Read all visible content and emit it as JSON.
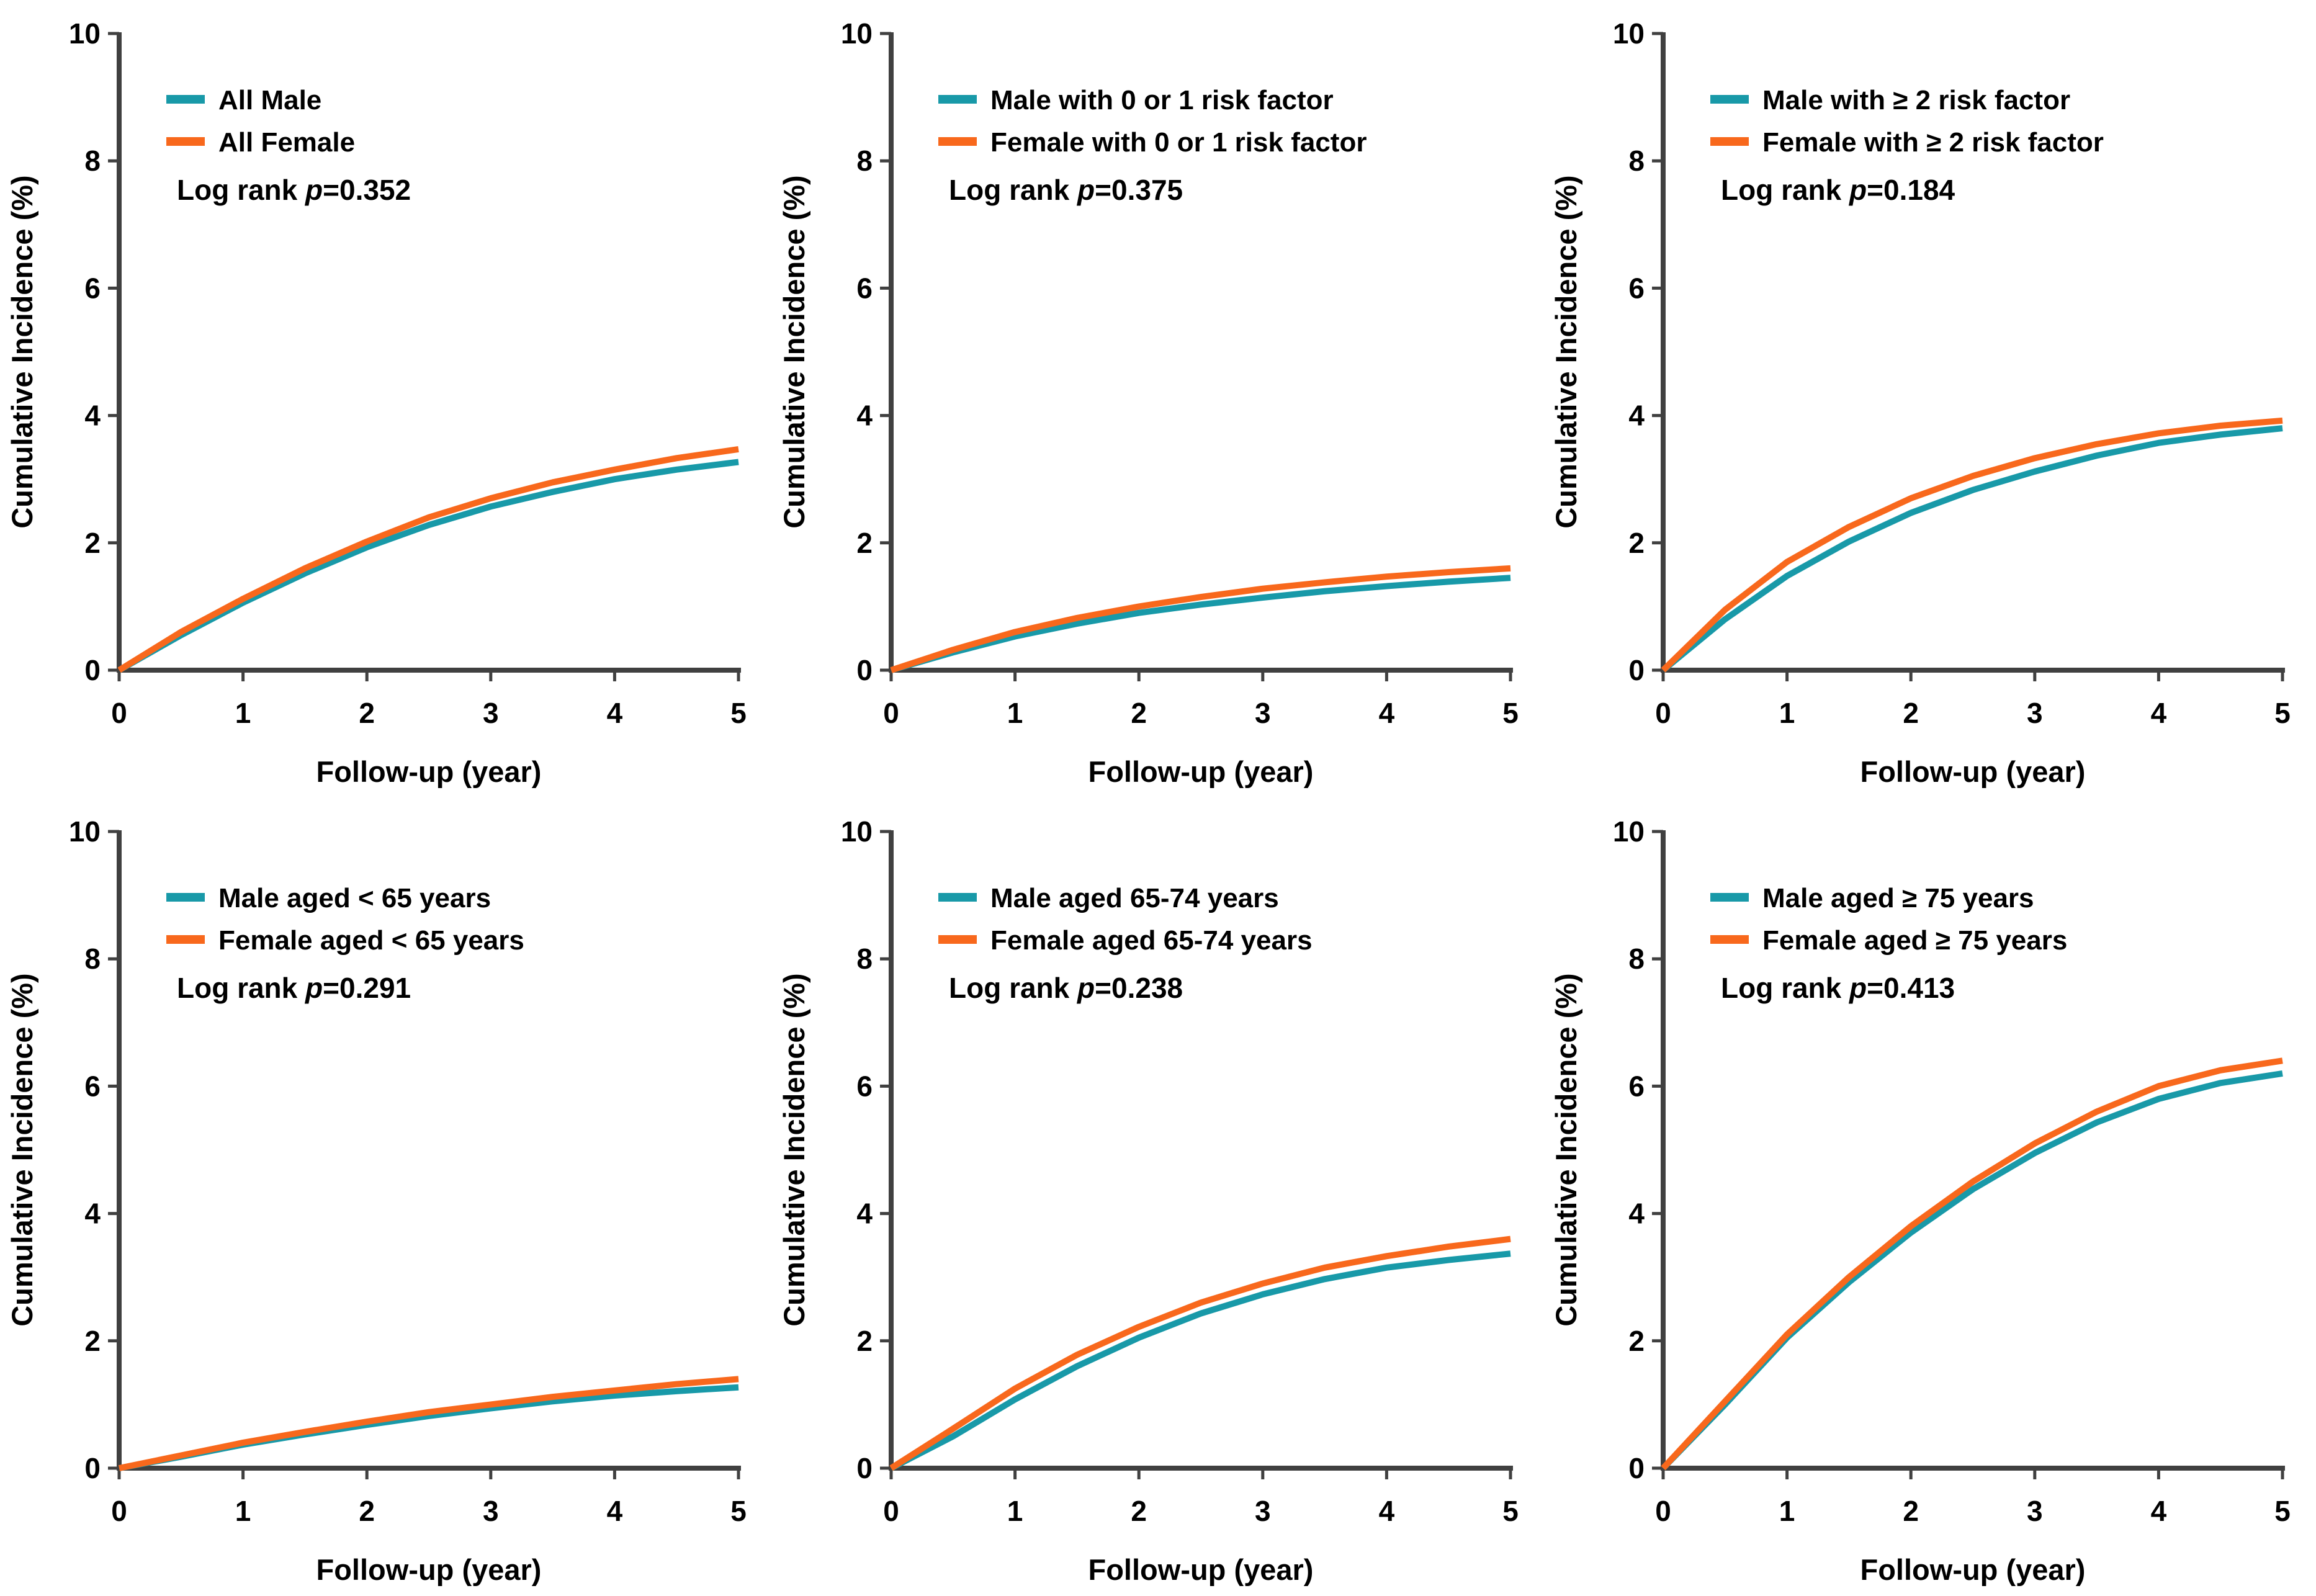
{
  "figure": {
    "background": "#ffffff",
    "rows": 2,
    "cols": 3
  },
  "colors": {
    "male": "#1899A8",
    "female": "#F8681C",
    "axis": "#404040",
    "text": "#000000"
  },
  "chart_data": [
    {
      "panel_id": "top-left",
      "type": "line",
      "xlabel": "Follow-up (year)",
      "ylabel": "Cumulative Incidence (%)",
      "xlim": [
        0,
        5
      ],
      "ylim": [
        0,
        10
      ],
      "xticks": [
        "0",
        "1",
        "2",
        "3",
        "4",
        "5"
      ],
      "yticks": [
        "0",
        "2",
        "4",
        "6",
        "8",
        "10"
      ],
      "grid": false,
      "legend_position": "upper-left",
      "log_rank": {
        "prefix": "Log rank ",
        "p_symbol": "p",
        "value": "=0.352"
      },
      "x": [
        0,
        0.5,
        1,
        1.5,
        2,
        2.5,
        3,
        3.5,
        4,
        4.5,
        5
      ],
      "series": [
        {
          "name": "All Male",
          "color_key": "male",
          "values": [
            0,
            0.55,
            1.06,
            1.52,
            1.93,
            2.28,
            2.57,
            2.8,
            3.0,
            3.15,
            3.27
          ]
        },
        {
          "name": "All Female",
          "color_key": "female",
          "values": [
            0,
            0.6,
            1.12,
            1.6,
            2.02,
            2.4,
            2.7,
            2.95,
            3.15,
            3.33,
            3.47
          ]
        }
      ]
    },
    {
      "panel_id": "top-middle",
      "type": "line",
      "xlabel": "Follow-up (year)",
      "ylabel": "Cumulative Incidence (%)",
      "xlim": [
        0,
        5
      ],
      "ylim": [
        0,
        10
      ],
      "xticks": [
        "0",
        "1",
        "2",
        "3",
        "4",
        "5"
      ],
      "yticks": [
        "0",
        "2",
        "4",
        "6",
        "8",
        "10"
      ],
      "grid": false,
      "legend_position": "upper-left",
      "log_rank": {
        "prefix": "Log rank ",
        "p_symbol": "p",
        "value": "=0.375"
      },
      "x": [
        0,
        0.5,
        1,
        1.5,
        2,
        2.5,
        3,
        3.5,
        4,
        4.5,
        5
      ],
      "series": [
        {
          "name": "Male with 0 or 1 risk factor",
          "color_key": "male",
          "values": [
            0,
            0.28,
            0.53,
            0.73,
            0.9,
            1.03,
            1.14,
            1.24,
            1.32,
            1.39,
            1.45
          ]
        },
        {
          "name": "Female with 0 or 1 risk factor",
          "color_key": "female",
          "values": [
            0,
            0.32,
            0.6,
            0.82,
            1.0,
            1.15,
            1.28,
            1.38,
            1.47,
            1.54,
            1.6
          ]
        }
      ]
    },
    {
      "panel_id": "top-right",
      "type": "line",
      "xlabel": "Follow-up (year)",
      "ylabel": "Cumulative Incidence (%)",
      "xlim": [
        0,
        5
      ],
      "ylim": [
        0,
        10
      ],
      "xticks": [
        "0",
        "1",
        "2",
        "3",
        "4",
        "5"
      ],
      "yticks": [
        "0",
        "2",
        "4",
        "6",
        "8",
        "10"
      ],
      "grid": false,
      "legend_position": "upper-left",
      "log_rank": {
        "prefix": "Log rank ",
        "p_symbol": "p",
        "value": "=0.184"
      },
      "x": [
        0,
        0.5,
        1,
        1.5,
        2,
        2.5,
        3,
        3.5,
        4,
        4.5,
        5
      ],
      "series": [
        {
          "name": "Male with ≥  2 risk factor",
          "color_key": "male",
          "values": [
            0,
            0.8,
            1.48,
            2.02,
            2.47,
            2.83,
            3.12,
            3.37,
            3.57,
            3.7,
            3.8
          ]
        },
        {
          "name": "Female with ≥ 2 risk factor",
          "color_key": "female",
          "values": [
            0,
            0.95,
            1.7,
            2.25,
            2.7,
            3.05,
            3.33,
            3.55,
            3.72,
            3.84,
            3.92
          ]
        }
      ]
    },
    {
      "panel_id": "bottom-left",
      "type": "line",
      "xlabel": "Follow-up (year)",
      "ylabel": "Cumulative Incidence (%)",
      "xlim": [
        0,
        5
      ],
      "ylim": [
        0,
        10
      ],
      "xticks": [
        "0",
        "1",
        "2",
        "3",
        "4",
        "5"
      ],
      "yticks": [
        "0",
        "2",
        "4",
        "6",
        "8",
        "10"
      ],
      "grid": false,
      "legend_position": "upper-left",
      "log_rank": {
        "prefix": "Log rank ",
        "p_symbol": "p",
        "value": "=0.291"
      },
      "x": [
        0,
        0.5,
        1,
        1.5,
        2,
        2.5,
        3,
        3.5,
        4,
        4.5,
        5
      ],
      "series": [
        {
          "name": "Male aged < 65 years",
          "color_key": "male",
          "values": [
            0,
            0.18,
            0.37,
            0.53,
            0.68,
            0.82,
            0.94,
            1.05,
            1.14,
            1.21,
            1.27
          ]
        },
        {
          "name": "Female aged < 65 years",
          "color_key": "female",
          "values": [
            0,
            0.2,
            0.4,
            0.57,
            0.73,
            0.88,
            1.0,
            1.12,
            1.22,
            1.32,
            1.4
          ]
        }
      ]
    },
    {
      "panel_id": "bottom-middle",
      "type": "line",
      "xlabel": "Follow-up (year)",
      "ylabel": "Cumulative Incidence (%)",
      "xlim": [
        0,
        5
      ],
      "ylim": [
        0,
        10
      ],
      "xticks": [
        "0",
        "1",
        "2",
        "3",
        "4",
        "5"
      ],
      "yticks": [
        "0",
        "2",
        "4",
        "6",
        "8",
        "10"
      ],
      "grid": false,
      "legend_position": "upper-left",
      "log_rank": {
        "prefix": "Log rank ",
        "p_symbol": "p",
        "value": "=0.238"
      },
      "x": [
        0,
        0.5,
        1,
        1.5,
        2,
        2.5,
        3,
        3.5,
        4,
        4.5,
        5
      ],
      "series": [
        {
          "name": "Male aged 65-74 years",
          "color_key": "male",
          "values": [
            0,
            0.5,
            1.08,
            1.6,
            2.05,
            2.43,
            2.73,
            2.97,
            3.15,
            3.27,
            3.37
          ]
        },
        {
          "name": "Female aged 65-74 years",
          "color_key": "female",
          "values": [
            0,
            0.62,
            1.25,
            1.78,
            2.22,
            2.6,
            2.9,
            3.15,
            3.33,
            3.48,
            3.6
          ]
        }
      ]
    },
    {
      "panel_id": "bottom-right",
      "type": "line",
      "xlabel": "Follow-up (year)",
      "ylabel": "Cumulative Incidence (%)",
      "xlim": [
        0,
        5
      ],
      "ylim": [
        0,
        10
      ],
      "xticks": [
        "0",
        "1",
        "2",
        "3",
        "4",
        "5"
      ],
      "yticks": [
        "0",
        "2",
        "4",
        "6",
        "8",
        "10"
      ],
      "grid": false,
      "legend_position": "upper-left",
      "log_rank": {
        "prefix": "Log rank ",
        "p_symbol": "p",
        "value": "=0.413"
      },
      "x": [
        0,
        0.5,
        1,
        1.5,
        2,
        2.5,
        3,
        3.5,
        4,
        4.5,
        5
      ],
      "series": [
        {
          "name": "Male aged ≥ 75 years",
          "color_key": "male",
          "values": [
            0,
            1.0,
            2.05,
            2.92,
            3.7,
            4.38,
            4.95,
            5.43,
            5.8,
            6.05,
            6.2
          ]
        },
        {
          "name": "Female aged ≥ 75 years",
          "color_key": "female",
          "values": [
            0,
            1.05,
            2.1,
            3.0,
            3.8,
            4.5,
            5.1,
            5.6,
            6.0,
            6.25,
            6.4
          ]
        }
      ]
    }
  ]
}
